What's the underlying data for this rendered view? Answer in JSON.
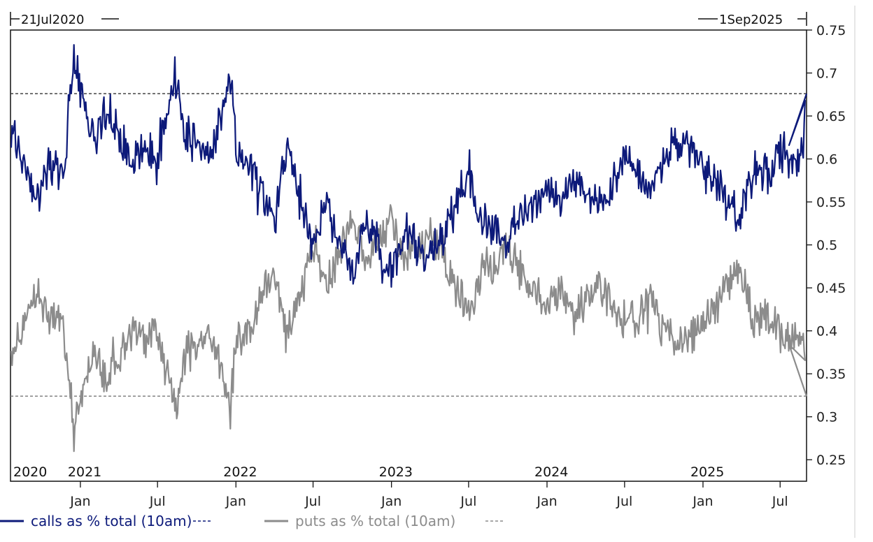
{
  "range": {
    "start_label": "21Jul2020",
    "end_label": "1Sep2025"
  },
  "chart_data": {
    "type": "line",
    "title": "",
    "xlabel": "",
    "ylabel": "",
    "x_range": [
      "2020-07-21",
      "2025-09-01"
    ],
    "ylim": [
      0.225,
      0.75
    ],
    "y_ticks": [
      "0.75",
      "0.7",
      "0.65",
      "0.6",
      "0.55",
      "0.5",
      "0.45",
      "0.4",
      "0.35",
      "0.3",
      "0.25"
    ],
    "x_month_ticks": [
      {
        "date": "2021-01-01",
        "label": "Jan"
      },
      {
        "date": "2021-07-01",
        "label": "Jul"
      },
      {
        "date": "2022-01-01",
        "label": "Jan"
      },
      {
        "date": "2022-07-01",
        "label": "Jul"
      },
      {
        "date": "2023-01-01",
        "label": "Jan"
      },
      {
        "date": "2023-07-01",
        "label": "Jul"
      },
      {
        "date": "2024-01-01",
        "label": "Jan"
      },
      {
        "date": "2024-07-01",
        "label": "Jul"
      },
      {
        "date": "2025-01-01",
        "label": "Jan"
      },
      {
        "date": "2025-07-01",
        "label": "Jul"
      }
    ],
    "x_year_labels": [
      {
        "date": "2020-07-21",
        "label": "2020"
      },
      {
        "date": "2021-01-01",
        "label": "2021"
      },
      {
        "date": "2022-01-01",
        "label": "2022"
      },
      {
        "date": "2023-01-01",
        "label": "2023"
      },
      {
        "date": "2024-01-01",
        "label": "2024"
      },
      {
        "date": "2025-01-01",
        "label": "2025"
      }
    ],
    "reference_lines": [
      {
        "value": 0.676,
        "color": "#333333"
      },
      {
        "value": 0.324,
        "color": "#777777"
      }
    ],
    "series": [
      {
        "name": "calls as % total (10am)",
        "color": "#0d1a7a",
        "points": [
          [
            "2020-07-21",
            0.63
          ],
          [
            "2020-08-20",
            0.6
          ],
          [
            "2020-09-20",
            0.55
          ],
          [
            "2020-10-20",
            0.59
          ],
          [
            "2020-11-20",
            0.58
          ],
          [
            "2020-12-01",
            0.63
          ],
          [
            "2020-12-15",
            0.72
          ],
          [
            "2021-01-01",
            0.68
          ],
          [
            "2021-02-01",
            0.62
          ],
          [
            "2021-03-01",
            0.66
          ],
          [
            "2021-04-01",
            0.63
          ],
          [
            "2021-05-01",
            0.6
          ],
          [
            "2021-06-01",
            0.61
          ],
          [
            "2021-07-01",
            0.6
          ],
          [
            "2021-08-01",
            0.67
          ],
          [
            "2021-08-15",
            0.7
          ],
          [
            "2021-09-01",
            0.63
          ],
          [
            "2021-10-01",
            0.62
          ],
          [
            "2021-11-01",
            0.6
          ],
          [
            "2021-12-01",
            0.65
          ],
          [
            "2021-12-20",
            0.69
          ],
          [
            "2022-01-01",
            0.61
          ],
          [
            "2022-02-01",
            0.6
          ],
          [
            "2022-03-01",
            0.56
          ],
          [
            "2022-04-01",
            0.53
          ],
          [
            "2022-05-01",
            0.61
          ],
          [
            "2022-06-01",
            0.56
          ],
          [
            "2022-07-01",
            0.5
          ],
          [
            "2022-08-01",
            0.55
          ],
          [
            "2022-09-01",
            0.5
          ],
          [
            "2022-10-01",
            0.47
          ],
          [
            "2022-11-01",
            0.52
          ],
          [
            "2022-12-01",
            0.5
          ],
          [
            "2023-01-01",
            0.47
          ],
          [
            "2023-02-01",
            0.52
          ],
          [
            "2023-03-01",
            0.5
          ],
          [
            "2023-04-01",
            0.49
          ],
          [
            "2023-05-01",
            0.51
          ],
          [
            "2023-06-01",
            0.55
          ],
          [
            "2023-07-01",
            0.58
          ],
          [
            "2023-08-01",
            0.53
          ],
          [
            "2023-09-01",
            0.52
          ],
          [
            "2023-10-01",
            0.5
          ],
          [
            "2023-11-01",
            0.53
          ],
          [
            "2023-12-01",
            0.55
          ],
          [
            "2024-01-01",
            0.57
          ],
          [
            "2024-02-01",
            0.55
          ],
          [
            "2024-03-01",
            0.58
          ],
          [
            "2024-04-01",
            0.56
          ],
          [
            "2024-05-01",
            0.55
          ],
          [
            "2024-06-01",
            0.57
          ],
          [
            "2024-07-01",
            0.6
          ],
          [
            "2024-08-01",
            0.58
          ],
          [
            "2024-09-01",
            0.56
          ],
          [
            "2024-10-01",
            0.6
          ],
          [
            "2024-11-01",
            0.62
          ],
          [
            "2024-12-01",
            0.61
          ],
          [
            "2025-01-01",
            0.59
          ],
          [
            "2025-02-01",
            0.57
          ],
          [
            "2025-03-01",
            0.55
          ],
          [
            "2025-04-01",
            0.53
          ],
          [
            "2025-05-01",
            0.59
          ],
          [
            "2025-06-01",
            0.58
          ],
          [
            "2025-07-01",
            0.61
          ],
          [
            "2025-08-10",
            0.6
          ],
          [
            "2025-08-25",
            0.62
          ],
          [
            "2025-09-01",
            0.676
          ]
        ]
      },
      {
        "name": "puts as % total (10am)",
        "color": "#8c8c8c",
        "points": [
          [
            "2020-07-21",
            0.37
          ],
          [
            "2020-08-20",
            0.4
          ],
          [
            "2020-09-20",
            0.45
          ],
          [
            "2020-10-20",
            0.41
          ],
          [
            "2020-11-20",
            0.42
          ],
          [
            "2020-12-01",
            0.37
          ],
          [
            "2020-12-15",
            0.28
          ],
          [
            "2021-01-01",
            0.32
          ],
          [
            "2021-02-01",
            0.38
          ],
          [
            "2021-03-01",
            0.34
          ],
          [
            "2021-04-01",
            0.37
          ],
          [
            "2021-05-01",
            0.4
          ],
          [
            "2021-06-01",
            0.39
          ],
          [
            "2021-07-01",
            0.4
          ],
          [
            "2021-08-01",
            0.33
          ],
          [
            "2021-08-15",
            0.3
          ],
          [
            "2021-09-01",
            0.37
          ],
          [
            "2021-10-01",
            0.38
          ],
          [
            "2021-11-01",
            0.4
          ],
          [
            "2021-12-01",
            0.35
          ],
          [
            "2021-12-20",
            0.31
          ],
          [
            "2022-01-01",
            0.39
          ],
          [
            "2022-02-01",
            0.4
          ],
          [
            "2022-03-01",
            0.44
          ],
          [
            "2022-04-01",
            0.47
          ],
          [
            "2022-05-01",
            0.39
          ],
          [
            "2022-06-01",
            0.44
          ],
          [
            "2022-07-01",
            0.5
          ],
          [
            "2022-08-01",
            0.45
          ],
          [
            "2022-09-01",
            0.5
          ],
          [
            "2022-10-01",
            0.53
          ],
          [
            "2022-11-01",
            0.48
          ],
          [
            "2022-12-01",
            0.5
          ],
          [
            "2023-01-01",
            0.53
          ],
          [
            "2023-02-01",
            0.48
          ],
          [
            "2023-03-01",
            0.5
          ],
          [
            "2023-04-01",
            0.51
          ],
          [
            "2023-05-01",
            0.49
          ],
          [
            "2023-06-01",
            0.45
          ],
          [
            "2023-07-01",
            0.42
          ],
          [
            "2023-08-01",
            0.47
          ],
          [
            "2023-09-01",
            0.48
          ],
          [
            "2023-10-01",
            0.5
          ],
          [
            "2023-11-01",
            0.47
          ],
          [
            "2023-12-01",
            0.45
          ],
          [
            "2024-01-01",
            0.43
          ],
          [
            "2024-02-01",
            0.45
          ],
          [
            "2024-03-01",
            0.42
          ],
          [
            "2024-04-01",
            0.44
          ],
          [
            "2024-05-01",
            0.45
          ],
          [
            "2024-06-01",
            0.43
          ],
          [
            "2024-07-01",
            0.4
          ],
          [
            "2024-08-01",
            0.42
          ],
          [
            "2024-09-01",
            0.44
          ],
          [
            "2024-10-01",
            0.4
          ],
          [
            "2024-11-01",
            0.38
          ],
          [
            "2024-12-01",
            0.39
          ],
          [
            "2025-01-01",
            0.41
          ],
          [
            "2025-02-01",
            0.43
          ],
          [
            "2025-03-01",
            0.45
          ],
          [
            "2025-04-01",
            0.47
          ],
          [
            "2025-05-01",
            0.41
          ],
          [
            "2025-06-01",
            0.42
          ],
          [
            "2025-07-01",
            0.39
          ],
          [
            "2025-08-10",
            0.4
          ],
          [
            "2025-08-25",
            0.38
          ],
          [
            "2025-09-01",
            0.324
          ]
        ]
      }
    ],
    "legend": {
      "placement": "bottom-left",
      "entries": [
        {
          "label": "calls as % total (10am)",
          "color": "#0d1a7a"
        },
        {
          "label": "puts as % total (10am)",
          "color": "#8c8c8c"
        }
      ]
    }
  }
}
